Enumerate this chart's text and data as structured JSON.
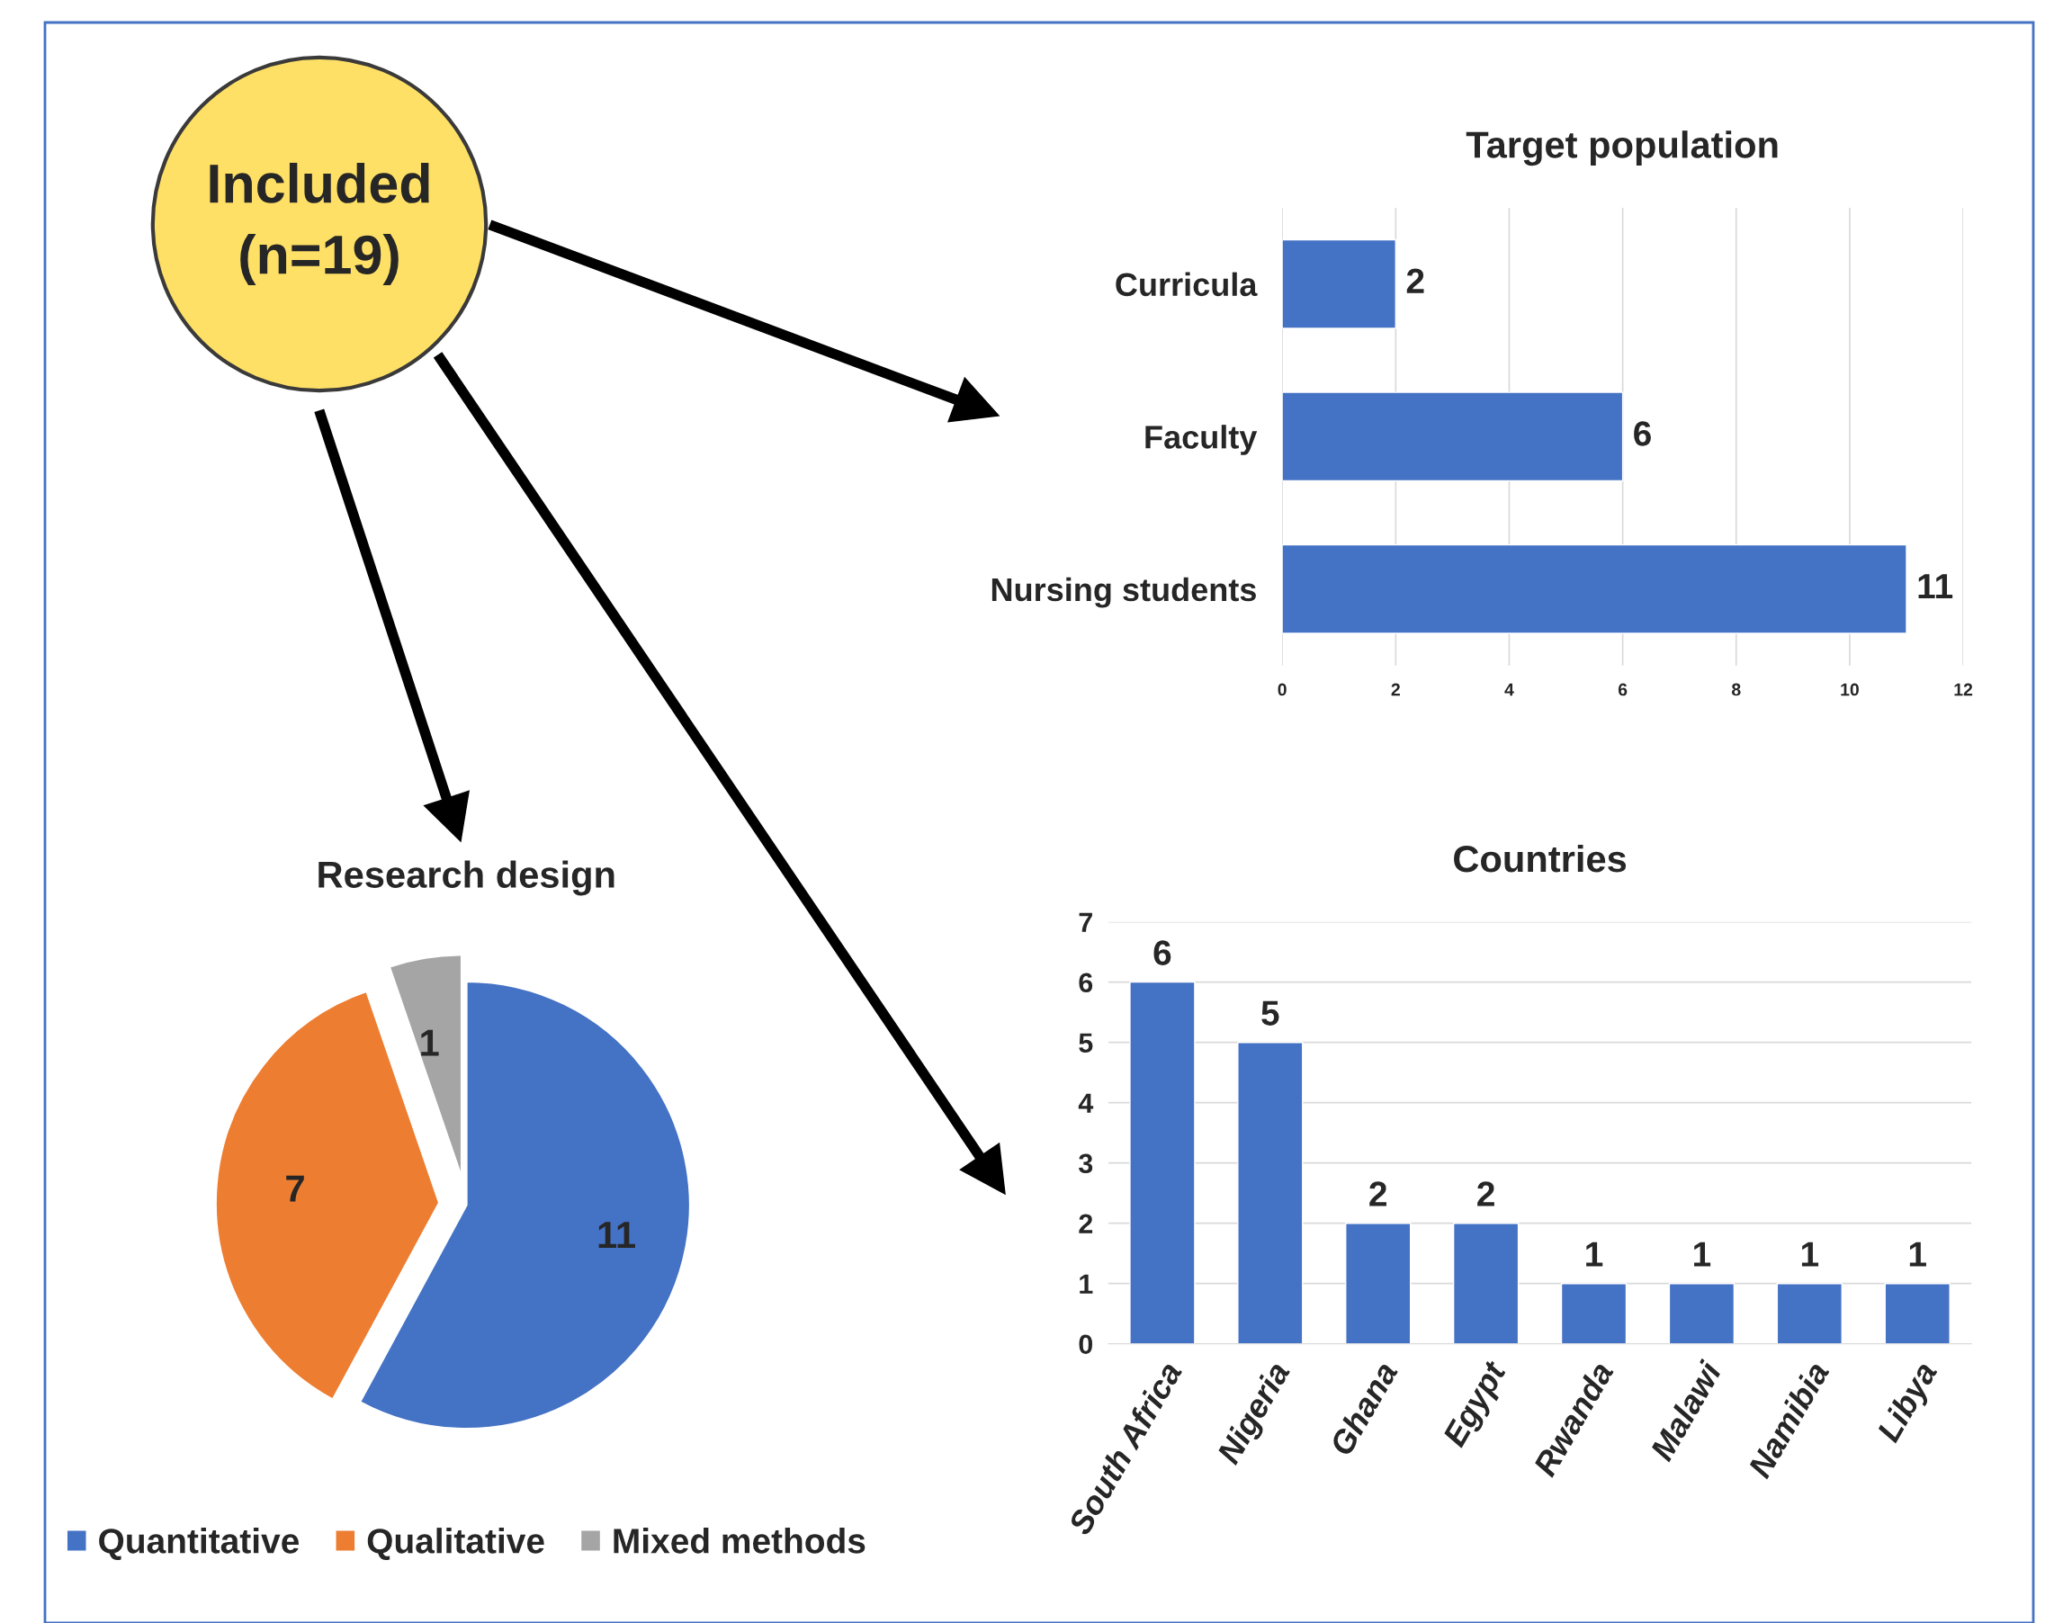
{
  "chart_data": [
    {
      "type": "other",
      "title": "Included (n=19)"
    },
    {
      "type": "bar",
      "orientation": "horizontal",
      "title": "Target population",
      "categories": [
        "Curricula",
        "Faculty",
        "Nursing students"
      ],
      "values": [
        2,
        6,
        11
      ],
      "color": "#4472c4",
      "xlim": [
        0,
        12
      ],
      "xticks": [
        0,
        2,
        4,
        6,
        8,
        10,
        12
      ],
      "grid": "x",
      "data_labels": true
    },
    {
      "type": "pie",
      "title": "Research design",
      "categories": [
        "Quantitative",
        "Qualitative",
        "Mixed methods"
      ],
      "values": [
        11,
        7,
        1
      ],
      "colors": [
        "#4472c4",
        "#ed7d31",
        "#a5a5a5"
      ],
      "data_labels": true,
      "legend": "bottom"
    },
    {
      "type": "bar",
      "title": "Countries",
      "categories": [
        "South Africa",
        "Nigeria",
        "Ghana",
        "Egypt",
        "Rwanda",
        "Malawi",
        "Namibia",
        "Libya"
      ],
      "values": [
        6,
        5,
        2,
        2,
        1,
        1,
        1,
        1
      ],
      "color": "#4472c4",
      "ylim": [
        0,
        7
      ],
      "yticks": [
        0,
        1,
        2,
        3,
        4,
        5,
        6,
        7
      ],
      "grid": "y",
      "data_labels": true
    }
  ]
}
